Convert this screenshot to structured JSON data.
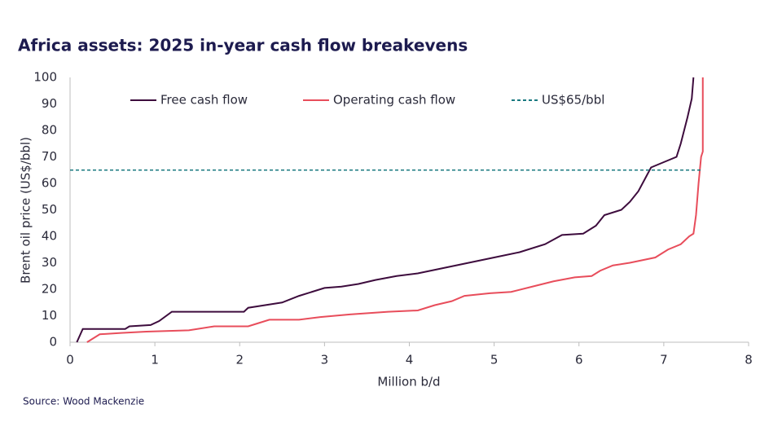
{
  "chart_data": {
    "type": "line",
    "title": "Africa assets: 2025 in-year cash flow breakevens",
    "x_label": "Million b/d",
    "y_label": "Brent oil price (US$/bbl)",
    "source": "Source: Wood Mackenzie",
    "xlim": [
      0,
      8
    ],
    "xticks": [
      0,
      1,
      2,
      3,
      4,
      5,
      6,
      7,
      8
    ],
    "ylim": [
      0,
      100
    ],
    "yticks": [
      0,
      10,
      20,
      30,
      40,
      50,
      60,
      70,
      80,
      90,
      100
    ],
    "grid": false,
    "legend": "top",
    "series": [
      {
        "name": "Free cash flow",
        "color": "#3d0c3d",
        "dashed": false,
        "x": [
          0.08,
          0.15,
          0.65,
          0.7,
          0.95,
          1.05,
          1.2,
          2.05,
          2.1,
          2.3,
          2.5,
          2.7,
          2.85,
          3.0,
          3.2,
          3.4,
          3.6,
          3.85,
          4.1,
          4.4,
          4.7,
          5.0,
          5.3,
          5.6,
          5.8,
          6.05,
          6.2,
          6.3,
          6.5,
          6.6,
          6.7,
          6.8,
          6.85,
          7.0,
          7.15,
          7.2,
          7.28,
          7.33,
          7.35
        ],
        "values": [
          0,
          5,
          5,
          6,
          6.5,
          8,
          11.5,
          11.5,
          13,
          14,
          15,
          17.5,
          19,
          20.5,
          21,
          22,
          23.5,
          25,
          26,
          28,
          30,
          32,
          34,
          37,
          40.5,
          41,
          44,
          48,
          50,
          53,
          57,
          63,
          66,
          68,
          70,
          75,
          85,
          92,
          100
        ]
      },
      {
        "name": "Operating cash flow",
        "color": "#e84d5b",
        "dashed": false,
        "x": [
          0.2,
          0.35,
          0.6,
          0.9,
          1.4,
          1.7,
          2.1,
          2.2,
          2.35,
          2.7,
          2.95,
          3.3,
          3.75,
          4.1,
          4.3,
          4.5,
          4.65,
          4.95,
          5.2,
          5.45,
          5.7,
          5.95,
          6.15,
          6.25,
          6.4,
          6.6,
          6.9,
          7.05,
          7.2,
          7.3,
          7.35,
          7.38,
          7.41,
          7.44,
          7.46,
          7.46
        ],
        "values": [
          0,
          3,
          3.5,
          4,
          4.5,
          6,
          6,
          7,
          8.5,
          8.5,
          9.5,
          10.5,
          11.5,
          12,
          14,
          15.5,
          17.5,
          18.5,
          19,
          21,
          23,
          24.5,
          25,
          27,
          29,
          30,
          32,
          35,
          37,
          40,
          41,
          48,
          60,
          70,
          72,
          100
        ]
      },
      {
        "name": "US$65/bbl",
        "color": "#1a7a80",
        "dashed": true,
        "x": [
          0,
          7.45
        ],
        "values": [
          65,
          65
        ]
      }
    ]
  }
}
